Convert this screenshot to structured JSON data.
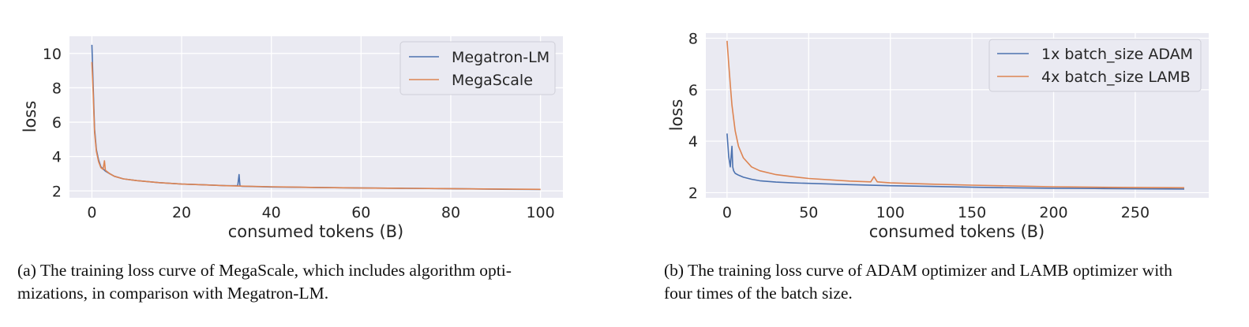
{
  "captions": {
    "a": {
      "line1": "(a) The training loss curve of MegaScale, which includes algorithm opti-",
      "line2": "mizations, in comparison with Megatron-LM."
    },
    "b": {
      "line1": "(b) The training loss curve of ADAM optimizer and LAMB optimizer with",
      "line2": "four times of the batch size."
    }
  },
  "chart_data": [
    {
      "type": "line",
      "title": "",
      "xlabel": "consumed tokens (B)",
      "ylabel": "loss",
      "xlim": [
        -5,
        105
      ],
      "ylim": [
        1.6,
        11
      ],
      "xticks": [
        0,
        20,
        40,
        60,
        80,
        100
      ],
      "yticks": [
        2,
        4,
        6,
        8,
        10
      ],
      "grid": true,
      "legend_position": "top-right",
      "series": [
        {
          "name": "Megatron-LM",
          "color": "#4c72b0",
          "x": [
            0,
            0.3,
            0.6,
            1,
            1.5,
            2,
            3,
            4,
            5,
            7,
            10,
            15,
            20,
            25,
            30,
            32.5,
            32.8,
            33,
            33.2,
            33.5,
            35,
            40,
            50,
            60,
            70,
            80,
            90,
            100
          ],
          "y": [
            10.5,
            8.0,
            5.6,
            4.4,
            3.8,
            3.4,
            3.15,
            3.0,
            2.85,
            2.7,
            2.6,
            2.48,
            2.4,
            2.35,
            2.3,
            2.3,
            2.95,
            2.3,
            2.28,
            2.27,
            2.26,
            2.23,
            2.2,
            2.17,
            2.15,
            2.13,
            2.1,
            2.08
          ]
        },
        {
          "name": "MegaScale",
          "color": "#dd8452",
          "x": [
            0,
            0.3,
            0.6,
            1,
            1.5,
            2,
            2.5,
            2.8,
            3,
            4,
            5,
            7,
            10,
            15,
            20,
            25,
            30,
            35,
            40,
            50,
            60,
            70,
            80,
            90,
            100
          ],
          "y": [
            9.5,
            7.6,
            5.4,
            4.3,
            3.7,
            3.35,
            3.25,
            3.75,
            3.2,
            3.0,
            2.85,
            2.7,
            2.6,
            2.48,
            2.4,
            2.35,
            2.3,
            2.27,
            2.24,
            2.2,
            2.17,
            2.15,
            2.13,
            2.11,
            2.09
          ]
        }
      ]
    },
    {
      "type": "line",
      "title": "",
      "xlabel": "consumed tokens (B)",
      "ylabel": "loss",
      "xlim": [
        -13,
        295
      ],
      "ylim": [
        1.8,
        8.2
      ],
      "xticks": [
        0,
        50,
        100,
        150,
        200,
        250
      ],
      "yticks": [
        2,
        4,
        6,
        8
      ],
      "grid": true,
      "legend_position": "top-right",
      "series": [
        {
          "name": "1x batch_size ADAM",
          "color": "#4c72b0",
          "x": [
            0,
            1,
            2,
            3,
            3.5,
            4,
            5,
            7,
            10,
            15,
            20,
            30,
            40,
            50,
            75,
            100,
            125,
            150,
            175,
            200,
            225,
            250,
            280
          ],
          "y": [
            4.3,
            3.4,
            3.0,
            3.8,
            3.0,
            2.85,
            2.75,
            2.68,
            2.6,
            2.52,
            2.46,
            2.41,
            2.38,
            2.36,
            2.31,
            2.27,
            2.24,
            2.21,
            2.19,
            2.17,
            2.16,
            2.15,
            2.14
          ]
        },
        {
          "name": "4x batch_size LAMB",
          "color": "#dd8452",
          "x": [
            0,
            1,
            2,
            3,
            5,
            7,
            10,
            15,
            20,
            30,
            40,
            50,
            75,
            88,
            90,
            92,
            100,
            125,
            150,
            175,
            200,
            225,
            250,
            280
          ],
          "y": [
            7.9,
            7.0,
            6.2,
            5.4,
            4.4,
            3.8,
            3.35,
            3.0,
            2.85,
            2.7,
            2.62,
            2.55,
            2.45,
            2.42,
            2.62,
            2.42,
            2.38,
            2.33,
            2.29,
            2.26,
            2.23,
            2.21,
            2.2,
            2.19
          ]
        }
      ]
    }
  ]
}
